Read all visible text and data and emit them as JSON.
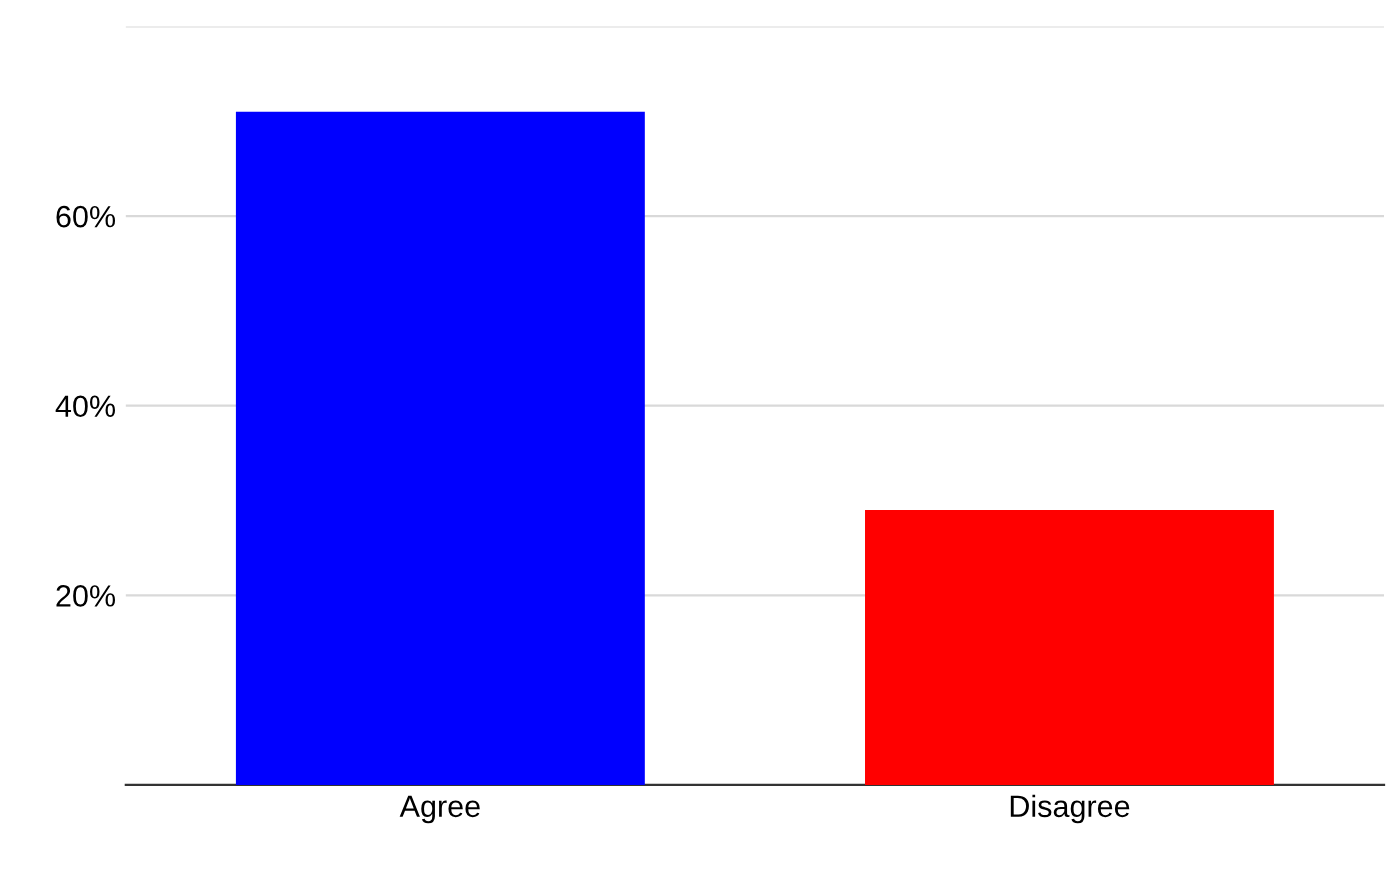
{
  "chart_data": {
    "type": "bar",
    "categories": [
      "Agree",
      "Disagree"
    ],
    "values": [
      71,
      29
    ],
    "colors": [
      "#0000ff",
      "#ff0000"
    ],
    "ylim": [
      0,
      80
    ],
    "yticks": [
      {
        "value": 20,
        "label": "20%"
      },
      {
        "value": 40,
        "label": "40%"
      },
      {
        "value": 60,
        "label": "60%"
      },
      {
        "value": 80,
        "label": null
      }
    ],
    "grid": "y"
  }
}
